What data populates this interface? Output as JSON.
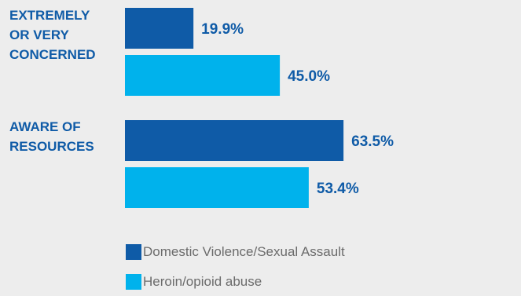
{
  "chart_data": {
    "type": "bar",
    "orientation": "horizontal",
    "categories": [
      [
        "EXTREMELY",
        "OR VERY",
        "CONCERNED"
      ],
      [
        "AWARE OF",
        "RESOURCES"
      ]
    ],
    "series": [
      {
        "name": "Domestic Violence/Sexual Assault",
        "color": "#0f5ba7",
        "values": [
          19.9,
          63.5
        ],
        "labels": [
          "19.9%",
          "63.5%"
        ]
      },
      {
        "name": "Heroin/opioid abuse",
        "color": "#00b2ec",
        "values": [
          45.0,
          53.4
        ],
        "labels": [
          "45.0%",
          "53.4%"
        ]
      }
    ],
    "xlim": [
      0,
      100
    ],
    "grid": false,
    "legend": "bottom",
    "title": "",
    "xlabel": "",
    "ylabel": ""
  }
}
